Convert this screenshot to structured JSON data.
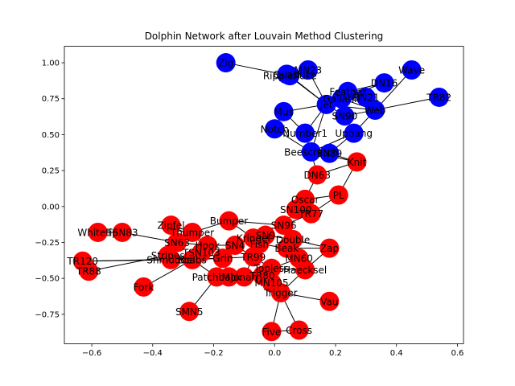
{
  "chart_data": {
    "type": "scatter",
    "title": "Dolphin Network after Louvain Method Clustering",
    "xlabel": "",
    "ylabel": "",
    "xlim": [
      -0.69,
      0.62
    ],
    "ylim": [
      -0.955,
      1.115
    ],
    "xticks": [
      -0.6,
      -0.4,
      -0.2,
      0.0,
      0.2,
      0.4,
      0.6
    ],
    "xtick_labels": [
      "−0.6",
      "−0.4",
      "−0.2",
      "0.0",
      "0.2",
      "0.4",
      "0.6"
    ],
    "yticks": [
      -0.75,
      -0.5,
      -0.25,
      0.0,
      0.25,
      0.5,
      0.75,
      1.0
    ],
    "ytick_labels": [
      "−0.75",
      "−0.50",
      "−0.25",
      "0.00",
      "0.25",
      "0.50",
      "0.75",
      "1.00"
    ],
    "grid": false,
    "community_colors": {
      "blue": "#0000ff",
      "red": "#ff0000"
    },
    "nodes": [
      {
        "label": "Zig",
        "x": -0.16,
        "y": 1.0,
        "community": "blue"
      },
      {
        "label": "Quasi",
        "x": 0.04,
        "y": 0.92,
        "community": "blue"
      },
      {
        "label": "MN23",
        "x": 0.11,
        "y": 0.95,
        "community": "blue"
      },
      {
        "label": "Ripplefluke",
        "x": 0.05,
        "y": 0.91,
        "community": "blue"
      },
      {
        "label": "Wave",
        "x": 0.45,
        "y": 0.95,
        "community": "blue"
      },
      {
        "label": "DN16",
        "x": 0.36,
        "y": 0.86,
        "community": "blue"
      },
      {
        "label": "TR82",
        "x": 0.54,
        "y": 0.76,
        "community": "blue"
      },
      {
        "label": "Feather",
        "x": 0.24,
        "y": 0.8,
        "community": "blue"
      },
      {
        "label": "Gallatin",
        "x": 0.22,
        "y": 0.75,
        "community": "blue"
      },
      {
        "label": "DN21",
        "x": 0.3,
        "y": 0.76,
        "community": "blue"
      },
      {
        "label": "Jet",
        "x": 0.17,
        "y": 0.71,
        "community": "blue"
      },
      {
        "label": "Web",
        "x": 0.33,
        "y": 0.67,
        "community": "blue"
      },
      {
        "label": "Mus",
        "x": 0.03,
        "y": 0.66,
        "community": "blue"
      },
      {
        "label": "SN90",
        "x": 0.23,
        "y": 0.63,
        "community": "blue"
      },
      {
        "label": "Notch",
        "x": 0.0,
        "y": 0.54,
        "community": "blue"
      },
      {
        "label": "Number1",
        "x": 0.1,
        "y": 0.51,
        "community": "blue"
      },
      {
        "label": "Upbang",
        "x": 0.26,
        "y": 0.51,
        "community": "blue"
      },
      {
        "label": "Beescratch",
        "x": 0.12,
        "y": 0.38,
        "community": "blue"
      },
      {
        "label": "SN89",
        "x": 0.18,
        "y": 0.37,
        "community": "blue"
      },
      {
        "label": "Knit",
        "x": 0.27,
        "y": 0.31,
        "community": "red"
      },
      {
        "label": "DN63",
        "x": 0.14,
        "y": 0.22,
        "community": "red"
      },
      {
        "label": "PL",
        "x": 0.21,
        "y": 0.08,
        "community": "red"
      },
      {
        "label": "Oscar",
        "x": 0.1,
        "y": 0.05,
        "community": "red"
      },
      {
        "label": "SN100",
        "x": 0.07,
        "y": -0.02,
        "community": "red"
      },
      {
        "label": "TR77",
        "x": 0.12,
        "y": -0.05,
        "community": "red"
      },
      {
        "label": "SN96",
        "x": 0.03,
        "y": -0.13,
        "community": "red"
      },
      {
        "label": "Bumper",
        "x": -0.15,
        "y": -0.1,
        "community": "red"
      },
      {
        "label": "Zipfel",
        "x": -0.34,
        "y": -0.13,
        "community": "red"
      },
      {
        "label": "Thumper",
        "x": -0.27,
        "y": -0.18,
        "community": "red"
      },
      {
        "label": "Kringel",
        "x": -0.07,
        "y": -0.22,
        "community": "red"
      },
      {
        "label": "SN9",
        "x": -0.03,
        "y": -0.2,
        "community": "red"
      },
      {
        "label": "Double",
        "x": 0.06,
        "y": -0.23,
        "community": "red"
      },
      {
        "label": "Hook",
        "x": -0.22,
        "y": -0.27,
        "community": "red"
      },
      {
        "label": "SN4",
        "x": -0.13,
        "y": -0.27,
        "community": "red"
      },
      {
        "label": "Fish",
        "x": -0.05,
        "y": -0.26,
        "community": "red"
      },
      {
        "label": "Beak",
        "x": 0.04,
        "y": -0.29,
        "community": "red"
      },
      {
        "label": "Zap",
        "x": 0.18,
        "y": -0.29,
        "community": "red"
      },
      {
        "label": "Whitetip",
        "x": -0.58,
        "y": -0.18,
        "community": "red"
      },
      {
        "label": "TSN83",
        "x": -0.5,
        "y": -0.18,
        "community": "red"
      },
      {
        "label": "SN63",
        "x": -0.32,
        "y": -0.25,
        "community": "red"
      },
      {
        "label": "Stripes",
        "x": -0.35,
        "y": -0.34,
        "community": "red"
      },
      {
        "label": "TSN103",
        "x": -0.24,
        "y": -0.32,
        "community": "red"
      },
      {
        "label": "Shmuddel",
        "x": -0.34,
        "y": -0.37,
        "community": "red"
      },
      {
        "label": "Scabs",
        "x": -0.27,
        "y": -0.37,
        "community": "red"
      },
      {
        "label": "Grin",
        "x": -0.17,
        "y": -0.36,
        "community": "red"
      },
      {
        "label": "TR99",
        "x": -0.07,
        "y": -0.35,
        "community": "red"
      },
      {
        "label": "MN60",
        "x": 0.08,
        "y": -0.36,
        "community": "red"
      },
      {
        "label": "TR120",
        "x": -0.63,
        "y": -0.38,
        "community": "red"
      },
      {
        "label": "TR88",
        "x": -0.61,
        "y": -0.45,
        "community": "red"
      },
      {
        "label": "Topless",
        "x": -0.01,
        "y": -0.43,
        "community": "red"
      },
      {
        "label": "Haecksel",
        "x": 0.1,
        "y": -0.44,
        "community": "red"
      },
      {
        "label": "Patchback",
        "x": -0.19,
        "y": -0.49,
        "community": "red"
      },
      {
        "label": "Mh",
        "x": -0.15,
        "y": -0.49,
        "community": "red"
      },
      {
        "label": "Jonah",
        "x": -0.1,
        "y": -0.49,
        "community": "red"
      },
      {
        "label": "TR80",
        "x": -0.04,
        "y": -0.48,
        "community": "red"
      },
      {
        "label": "MN105",
        "x": -0.01,
        "y": -0.53,
        "community": "red"
      },
      {
        "label": "Fork",
        "x": -0.43,
        "y": -0.56,
        "community": "red"
      },
      {
        "label": "Trigger",
        "x": 0.02,
        "y": -0.6,
        "community": "red"
      },
      {
        "label": "Vau",
        "x": 0.18,
        "y": -0.66,
        "community": "red"
      },
      {
        "label": "SMN5",
        "x": -0.28,
        "y": -0.73,
        "community": "red"
      },
      {
        "label": "Five",
        "x": -0.01,
        "y": -0.87,
        "community": "red"
      },
      {
        "label": "Cross",
        "x": 0.08,
        "y": -0.86,
        "community": "red"
      }
    ],
    "edges": [
      [
        "Zig",
        "Ripplefluke"
      ],
      [
        "Quasi",
        "Jet"
      ],
      [
        "MN23",
        "Jet"
      ],
      [
        "Ripplefluke",
        "Jet"
      ],
      [
        "Wave",
        "Web"
      ],
      [
        "DN16",
        "Feather"
      ],
      [
        "DN16",
        "Gallatin"
      ],
      [
        "TR82",
        "SN90"
      ],
      [
        "Feather",
        "Gallatin"
      ],
      [
        "Feather",
        "Jet"
      ],
      [
        "Feather",
        "Web"
      ],
      [
        "Gallatin",
        "Jet"
      ],
      [
        "Gallatin",
        "DN21"
      ],
      [
        "Gallatin",
        "Web"
      ],
      [
        "DN21",
        "Web"
      ],
      [
        "Jet",
        "Mus"
      ],
      [
        "Jet",
        "Number1"
      ],
      [
        "Jet",
        "Web"
      ],
      [
        "Jet",
        "Beescratch"
      ],
      [
        "Mus",
        "Notch"
      ],
      [
        "Mus",
        "Number1"
      ],
      [
        "Notch",
        "Beescratch"
      ],
      [
        "Number1",
        "Beescratch"
      ],
      [
        "SN90",
        "Upbang"
      ],
      [
        "SN90",
        "Jet"
      ],
      [
        "Upbang",
        "Beescratch"
      ],
      [
        "Upbang",
        "SN89"
      ],
      [
        "Web",
        "Upbang"
      ],
      [
        "Beescratch",
        "SN89"
      ],
      [
        "Beescratch",
        "Knit"
      ],
      [
        "SN89",
        "Knit"
      ],
      [
        "Beescratch",
        "DN63"
      ],
      [
        "DN63",
        "Knit"
      ],
      [
        "DN63",
        "Oscar"
      ],
      [
        "Knit",
        "PL"
      ],
      [
        "PL",
        "Oscar"
      ],
      [
        "PL",
        "TR77"
      ],
      [
        "Oscar",
        "SN100"
      ],
      [
        "SN100",
        "TR77"
      ],
      [
        "SN100",
        "SN96"
      ],
      [
        "SN96",
        "TR77"
      ],
      [
        "SN96",
        "Double"
      ],
      [
        "SN96",
        "Bumper"
      ],
      [
        "Bumper",
        "Kringel"
      ],
      [
        "Bumper",
        "Thumper"
      ],
      [
        "Zipfel",
        "Thumper"
      ],
      [
        "Zipfel",
        "Hook"
      ],
      [
        "Thumper",
        "Hook"
      ],
      [
        "Kringel",
        "SN9"
      ],
      [
        "SN9",
        "Double"
      ],
      [
        "SN9",
        "Fish"
      ],
      [
        "Kringel",
        "SN4"
      ],
      [
        "Double",
        "Beak"
      ],
      [
        "Double",
        "Zap"
      ],
      [
        "Beak",
        "Zap"
      ],
      [
        "Beak",
        "MN60"
      ],
      [
        "Fish",
        "Beak"
      ],
      [
        "SN4",
        "Hook"
      ],
      [
        "SN4",
        "Grin"
      ],
      [
        "SN4",
        "TR99"
      ],
      [
        "Whitetip",
        "TSN83"
      ],
      [
        "TSN83",
        "SN63"
      ],
      [
        "SN63",
        "Hook"
      ],
      [
        "SN63",
        "Stripes"
      ],
      [
        "Stripes",
        "Scabs"
      ],
      [
        "TSN103",
        "Grin"
      ],
      [
        "Shmuddel",
        "Scabs"
      ],
      [
        "Scabs",
        "Grin"
      ],
      [
        "Scabs",
        "Patchback"
      ],
      [
        "Grin",
        "TR99"
      ],
      [
        "Grin",
        "Patchback"
      ],
      [
        "Grin",
        "Mh"
      ],
      [
        "TR99",
        "Topless"
      ],
      [
        "TR99",
        "Jonah"
      ],
      [
        "MN60",
        "Haecksel"
      ],
      [
        "MN60",
        "Topless"
      ],
      [
        "Topless",
        "Haecksel"
      ],
      [
        "Topless",
        "TR80"
      ],
      [
        "Topless",
        "Trigger"
      ],
      [
        "Haecksel",
        "Trigger"
      ],
      [
        "Haecksel",
        "Zap"
      ],
      [
        "TR120",
        "Grin"
      ],
      [
        "TR120",
        "Scabs"
      ],
      [
        "TR88",
        "Stripes"
      ],
      [
        "Patchback",
        "Jonah"
      ],
      [
        "Mh",
        "Jonah"
      ],
      [
        "Jonah",
        "MN105"
      ],
      [
        "TR80",
        "MN105"
      ],
      [
        "MN105",
        "Trigger"
      ],
      [
        "Fork",
        "Scabs"
      ],
      [
        "Trigger",
        "Vau"
      ],
      [
        "Trigger",
        "Five"
      ],
      [
        "Trigger",
        "Cross"
      ],
      [
        "SMN5",
        "Patchback"
      ],
      [
        "Five",
        "Cross"
      ]
    ]
  }
}
